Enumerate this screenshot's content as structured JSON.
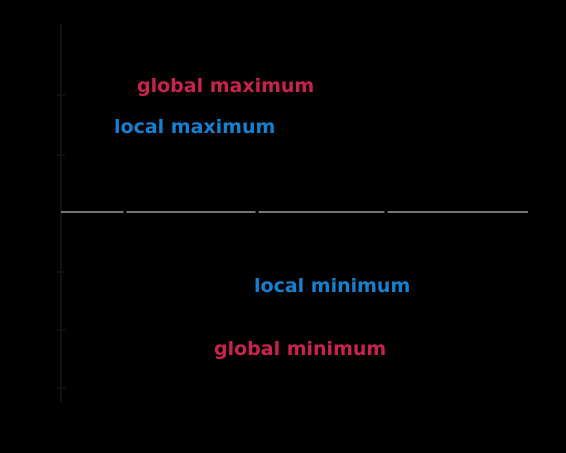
{
  "diagram": {
    "labels": {
      "global_max": "global maximum",
      "local_max": "local maximum",
      "local_min": "local minimum",
      "global_min": "global minimum"
    },
    "colors": {
      "background": "#000000",
      "global": "#C8234A",
      "local": "#1580CF",
      "axis_vertical": "#111111",
      "axis_horizontal": "#9A9A9A"
    },
    "axis_ticks": {
      "horizontal_ticks": 3,
      "vertical_ticks": 6
    }
  }
}
